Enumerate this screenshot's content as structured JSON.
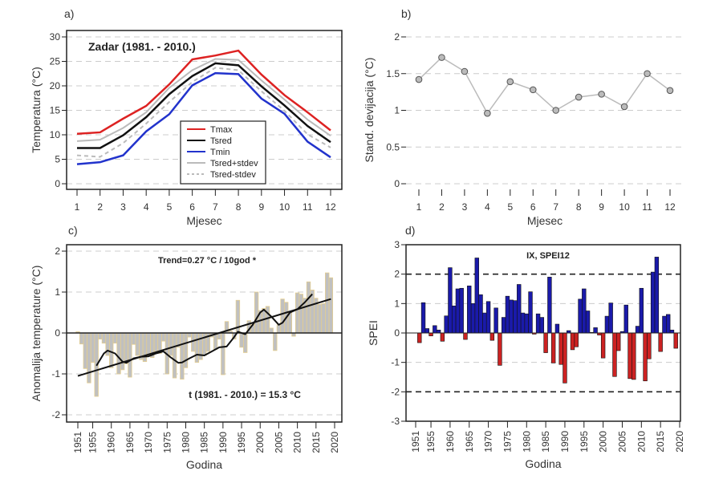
{
  "chart_data": [
    {
      "panel": "a)",
      "type": "line",
      "title": "Zadar (1981. - 2010.)",
      "xlabel": "Mjesec",
      "ylabel": "Temperatura (°C)",
      "ylim": [
        0,
        30
      ],
      "yticks": [
        "0",
        "5",
        "10",
        "15",
        "20",
        "25",
        "30"
      ],
      "x": [
        "1",
        "2",
        "3",
        "4",
        "5",
        "6",
        "7",
        "8",
        "9",
        "10",
        "11",
        "12"
      ],
      "series": [
        {
          "name": "Tmax",
          "color": "#dd2222",
          "values": [
            10.2,
            10.5,
            13.3,
            15.9,
            20.3,
            25.4,
            26.2,
            27.2,
            22.3,
            18.1,
            14.6,
            10.9
          ]
        },
        {
          "name": "Tsred",
          "color": "#111111",
          "values": [
            7.3,
            7.3,
            9.9,
            13.6,
            18.3,
            22.0,
            24.6,
            24.2,
            19.9,
            16.0,
            11.8,
            8.5
          ]
        },
        {
          "name": "Tmin",
          "color": "#2233cc",
          "values": [
            4.0,
            4.4,
            5.8,
            10.7,
            14.2,
            20.1,
            22.6,
            22.4,
            17.4,
            14.3,
            8.6,
            5.4
          ]
        },
        {
          "name": "Tsred+stdev",
          "color": "#bbbbbb",
          "values": [
            8.7,
            9.0,
            11.4,
            14.6,
            19.6,
            23.2,
            25.5,
            25.3,
            21.1,
            17.2,
            13.1,
            9.8
          ]
        },
        {
          "name": "Tsred-stdev",
          "color": "#bbbbbb",
          "dashed": true,
          "values": [
            5.8,
            5.5,
            8.3,
            12.3,
            16.7,
            20.8,
            23.7,
            23.2,
            18.9,
            14.9,
            10.1,
            7.4
          ]
        }
      ],
      "legend": "bottom-center"
    },
    {
      "panel": "b)",
      "type": "line",
      "xlabel": "Mjesec",
      "ylabel": "Stand. devijacija (°C)",
      "ylim": [
        0,
        2
      ],
      "yticks": [
        "0",
        "0.5",
        "1",
        "1.5",
        "2"
      ],
      "x": [
        "1",
        "2",
        "3",
        "4",
        "5",
        "6",
        "7",
        "8",
        "9",
        "10",
        "11",
        "12"
      ],
      "values": [
        1.42,
        1.72,
        1.53,
        0.96,
        1.39,
        1.28,
        1.0,
        1.18,
        1.22,
        1.05,
        1.5,
        1.27
      ]
    },
    {
      "panel": "c)",
      "type": "bar",
      "xlabel": "Godina",
      "ylabel": "Anomalija temperature (°C)",
      "ylim": [
        -2,
        2
      ],
      "yticks": [
        "-2",
        "-1",
        "0",
        "1",
        "2"
      ],
      "xticks": [
        "1951",
        "1955",
        "1960",
        "1965",
        "1970",
        "1975",
        "1980",
        "1985",
        "1990",
        "1995",
        "2000",
        "2005",
        "2010",
        "2015",
        "2020"
      ],
      "annotation_trend": "Trend=0.27 °C / 10god *",
      "annotation_mean": "t (1981. - 2010.) = 15.3 °C",
      "start_year": 1951,
      "values": [
        0.03,
        -0.27,
        -0.87,
        -1.22,
        -0.72,
        -1.55,
        -0.15,
        -0.25,
        -0.55,
        -0.85,
        -0.25,
        -1.0,
        -0.9,
        -0.75,
        -1.08,
        -0.28,
        -0.55,
        -0.65,
        -0.7,
        -0.55,
        -0.6,
        -0.45,
        -0.5,
        -0.2,
        -1.0,
        -0.55,
        -1.1,
        -0.35,
        -1.13,
        -0.85,
        -0.1,
        -0.45,
        -0.72,
        -0.65,
        -0.55,
        -0.45,
        -0.1,
        -0.4,
        -0.15,
        -1.02,
        0.28,
        0.05,
        -0.15,
        0.8,
        -0.35,
        -0.48,
        0.3,
        0.2,
        1.0,
        0.55,
        0.6,
        0.65,
        0.12,
        -0.43,
        0.2,
        0.83,
        0.75,
        0.5,
        -0.08,
        0.98,
        0.95,
        0.85,
        1.25,
        1.05,
        0.85,
        0.7,
        0.72,
        1.47,
        1.35
      ],
      "trend_line": [
        [
          1951,
          -1.05
        ],
        [
          2019,
          0.83
        ]
      ],
      "smooth": [
        [
          1956,
          -0.8
        ],
        [
          1958,
          -0.5
        ],
        [
          1959,
          -0.43
        ],
        [
          1961,
          -0.5
        ],
        [
          1963,
          -0.7
        ],
        [
          1964,
          -0.73
        ],
        [
          1966,
          -0.62
        ],
        [
          1968,
          -0.58
        ],
        [
          1970,
          -0.57
        ],
        [
          1972,
          -0.5
        ],
        [
          1974,
          -0.45
        ],
        [
          1976,
          -0.6
        ],
        [
          1978,
          -0.73
        ],
        [
          1979,
          -0.72
        ],
        [
          1981,
          -0.62
        ],
        [
          1983,
          -0.53
        ],
        [
          1985,
          -0.55
        ],
        [
          1987,
          -0.45
        ],
        [
          1989,
          -0.35
        ],
        [
          1991,
          -0.33
        ],
        [
          1993,
          -0.1
        ],
        [
          1994,
          0.03
        ],
        [
          1996,
          -0.03
        ],
        [
          1998,
          0.2
        ],
        [
          2000,
          0.5
        ],
        [
          2001,
          0.57
        ],
        [
          2003,
          0.4
        ],
        [
          2005,
          0.2
        ],
        [
          2006,
          0.25
        ],
        [
          2008,
          0.5
        ],
        [
          2010,
          0.58
        ],
        [
          2012,
          0.75
        ],
        [
          2014,
          0.95
        ]
      ]
    },
    {
      "panel": "d)",
      "type": "bar",
      "title": "IX, SPEI12",
      "xlabel": "Godina",
      "ylabel": "SPEI",
      "ylim": [
        -3,
        3
      ],
      "yticks": [
        "-3",
        "-2",
        "-1",
        "0",
        "1",
        "2",
        "3"
      ],
      "xticks": [
        "1951",
        "1955",
        "1960",
        "1965",
        "1970",
        "1975",
        "1980",
        "1985",
        "1990",
        "1995",
        "2000",
        "2005",
        "2010",
        "2015",
        "2020"
      ],
      "start_year": 1952,
      "positive_color": "#1a1aaa",
      "negative_color": "#cc2222",
      "values": [
        -0.33,
        1.03,
        0.15,
        -0.1,
        0.25,
        0.1,
        -0.28,
        0.58,
        2.22,
        0.92,
        1.5,
        1.52,
        -0.22,
        1.6,
        1.0,
        2.55,
        1.3,
        0.68,
        1.07,
        -0.25,
        0.85,
        -1.1,
        0.53,
        1.25,
        1.12,
        1.1,
        1.65,
        0.68,
        0.65,
        1.4,
        -0.04,
        0.65,
        0.53,
        -0.67,
        1.9,
        -1.02,
        0.3,
        -1.07,
        -1.7,
        0.08,
        -0.57,
        -0.47,
        1.15,
        1.5,
        0.75,
        0.02,
        0.18,
        -0.07,
        -0.85,
        0.57,
        1.02,
        -1.48,
        -0.6,
        0.05,
        0.95,
        -1.55,
        -1.58,
        0.23,
        1.52,
        -1.63,
        -0.88,
        2.07,
        2.58,
        -0.63,
        0.57,
        0.63,
        0.1,
        -0.52
      ]
    }
  ]
}
